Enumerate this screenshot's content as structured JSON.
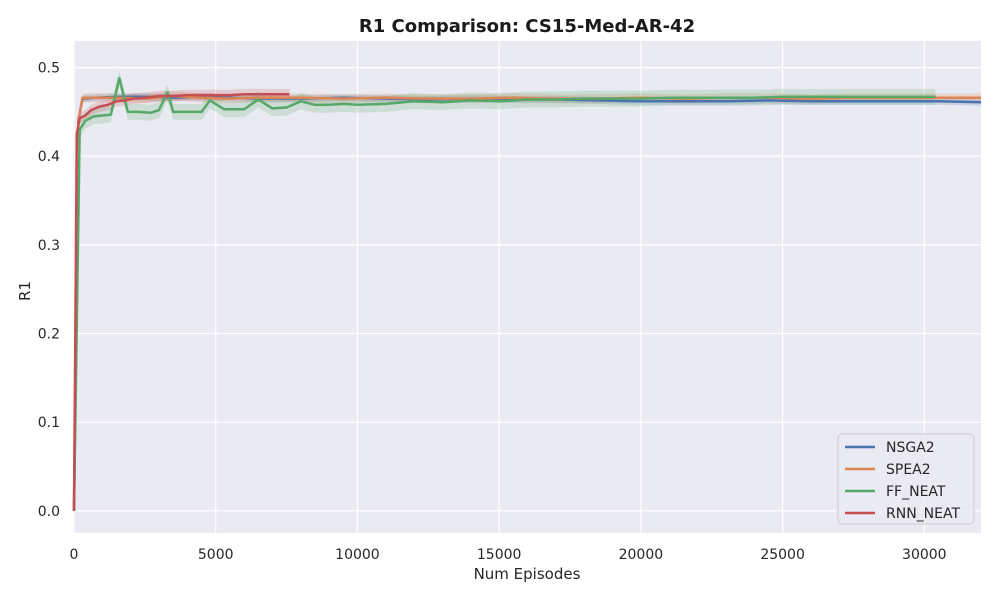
{
  "chart_data": {
    "type": "line",
    "title": "R1 Comparison: CS15-Med-AR-42",
    "xlabel": "Num Episodes",
    "ylabel": "R1",
    "xlim": [
      0,
      32000
    ],
    "ylim": [
      -0.025,
      0.53
    ],
    "xticks": [
      0,
      5000,
      10000,
      15000,
      20000,
      25000,
      30000
    ],
    "yticks": [
      0.0,
      0.1,
      0.2,
      0.3,
      0.4,
      0.5
    ],
    "grid": true,
    "legend_position": "lower-right",
    "background_color": "#EAEAF2",
    "series": [
      {
        "name": "NSGA2",
        "color": "#4C72B0",
        "band": 0.004,
        "x": [
          0,
          150,
          300,
          800,
          1500,
          2500,
          3500,
          4500,
          5500,
          6500,
          8000,
          9500,
          11000,
          12500,
          14000,
          15500,
          17000,
          18500,
          20000,
          21500,
          23000,
          24500,
          26000,
          27500,
          29000,
          30500,
          32000
        ],
        "y": [
          0.0,
          0.44,
          0.465,
          0.466,
          0.467,
          0.467,
          0.466,
          0.467,
          0.466,
          0.465,
          0.465,
          0.466,
          0.465,
          0.464,
          0.465,
          0.464,
          0.464,
          0.463,
          0.462,
          0.462,
          0.462,
          0.463,
          0.462,
          0.462,
          0.462,
          0.462,
          0.461
        ]
      },
      {
        "name": "SPEA2",
        "color": "#DD8452",
        "band": 0.005,
        "x": [
          0,
          150,
          300,
          800,
          1500,
          2500,
          3500,
          4500,
          5500,
          6500,
          8000,
          9500,
          11000,
          12500,
          14000,
          15500,
          17000,
          18500,
          20000,
          21500,
          23000,
          24500,
          26000,
          27500,
          29000,
          30500,
          32000
        ],
        "y": [
          0.0,
          0.44,
          0.466,
          0.466,
          0.466,
          0.465,
          0.468,
          0.466,
          0.465,
          0.466,
          0.466,
          0.465,
          0.466,
          0.465,
          0.465,
          0.466,
          0.465,
          0.465,
          0.466,
          0.465,
          0.466,
          0.466,
          0.465,
          0.466,
          0.466,
          0.466,
          0.466
        ]
      },
      {
        "name": "FF_NEAT",
        "color": "#55A868",
        "band": 0.009,
        "x": [
          0,
          200,
          400,
          700,
          1300,
          1600,
          1900,
          2300,
          2700,
          3000,
          3300,
          3500,
          4000,
          4500,
          4800,
          5300,
          6000,
          6500,
          7000,
          7500,
          8000,
          8500,
          9000,
          9500,
          10000,
          11000,
          12000,
          13000,
          14000,
          15000,
          16000,
          17000,
          18000,
          19000,
          20000,
          21000,
          22000,
          23000,
          24000,
          25000,
          26000,
          27000,
          28000,
          29000,
          30000,
          30400
        ],
        "y": [
          0.0,
          0.43,
          0.44,
          0.445,
          0.447,
          0.488,
          0.45,
          0.45,
          0.449,
          0.452,
          0.472,
          0.45,
          0.45,
          0.45,
          0.463,
          0.453,
          0.453,
          0.464,
          0.454,
          0.455,
          0.462,
          0.458,
          0.458,
          0.459,
          0.458,
          0.459,
          0.462,
          0.461,
          0.463,
          0.462,
          0.464,
          0.464,
          0.465,
          0.465,
          0.465,
          0.466,
          0.466,
          0.466,
          0.466,
          0.467,
          0.467,
          0.467,
          0.467,
          0.467,
          0.467,
          0.467
        ]
      },
      {
        "name": "RNN_NEAT",
        "color": "#C44E52",
        "band": 0.006,
        "x": [
          0,
          100,
          200,
          400,
          600,
          900,
          1200,
          1500,
          1800,
          2100,
          2500,
          3000,
          3500,
          4000,
          4500,
          5000,
          5500,
          6000,
          6500,
          7000,
          7600
        ],
        "y": [
          0.0,
          0.425,
          0.443,
          0.446,
          0.452,
          0.456,
          0.458,
          0.462,
          0.463,
          0.465,
          0.466,
          0.468,
          0.468,
          0.469,
          0.469,
          0.469,
          0.469,
          0.47,
          0.47,
          0.47,
          0.47
        ]
      }
    ]
  }
}
